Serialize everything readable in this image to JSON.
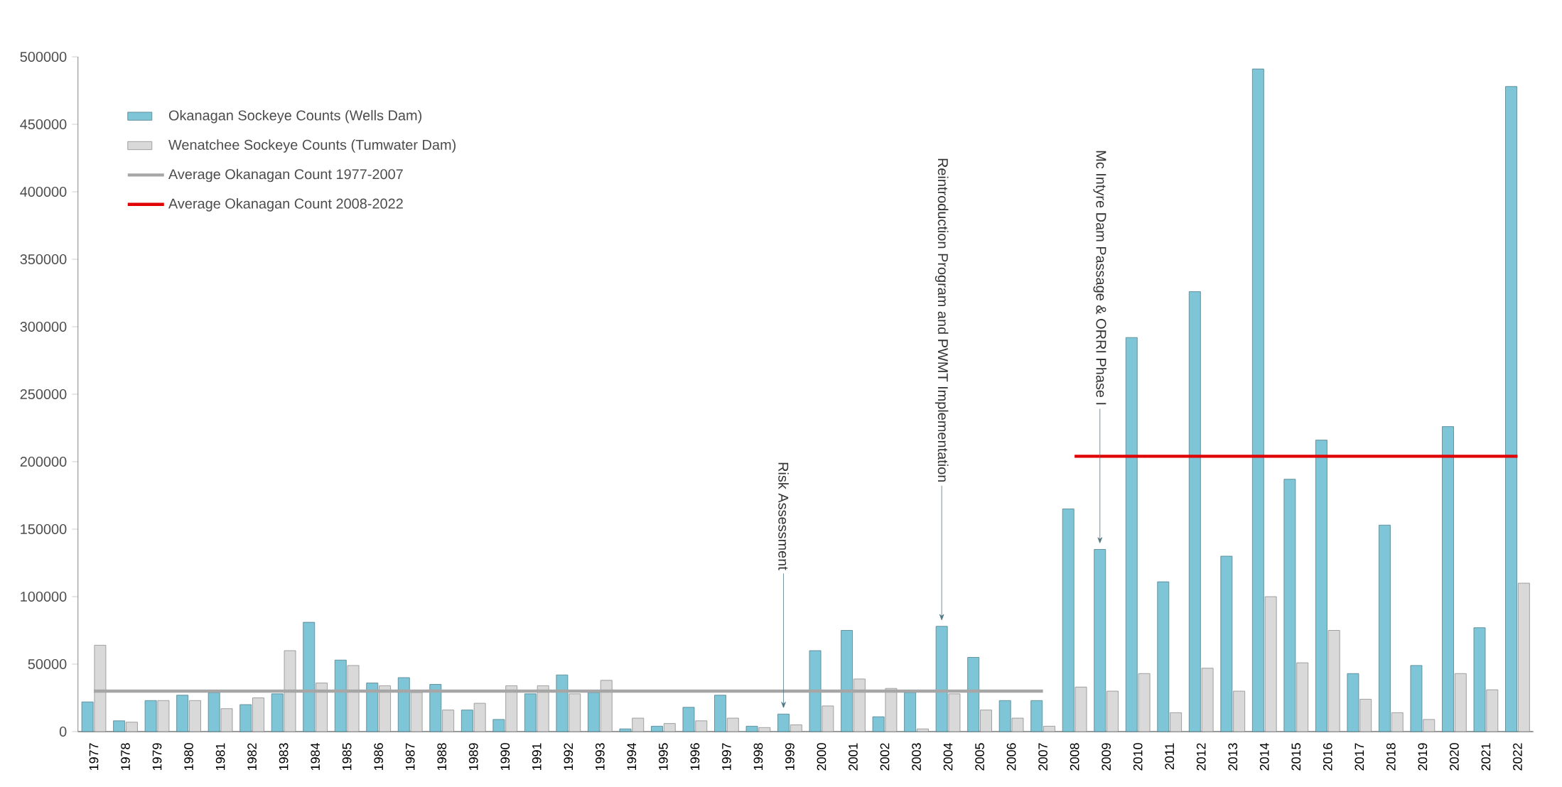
{
  "chart_data": {
    "type": "bar",
    "categories": [
      "1977",
      "1978",
      "1979",
      "1980",
      "1981",
      "1982",
      "1983",
      "1984",
      "1985",
      "1986",
      "1987",
      "1988",
      "1989",
      "1990",
      "1991",
      "1992",
      "1993",
      "1994",
      "1995",
      "1996",
      "1997",
      "1998",
      "1999",
      "2000",
      "2001",
      "2002",
      "2003",
      "2004",
      "2005",
      "2006",
      "2007",
      "2008",
      "2009",
      "2010",
      "2011",
      "2012",
      "2013",
      "2014",
      "2015",
      "2016",
      "2017",
      "2018",
      "2019",
      "2020",
      "2021",
      "2022"
    ],
    "series": [
      {
        "name": "Okanagan Sockeye Counts (Wells Dam)",
        "color": "#7ec5d8",
        "values": [
          22000,
          8000,
          23000,
          27000,
          29000,
          20000,
          28000,
          81000,
          53000,
          36000,
          40000,
          35000,
          16000,
          9000,
          28000,
          42000,
          29000,
          2000,
          4000,
          18000,
          27000,
          4000,
          13000,
          60000,
          75000,
          11000,
          29000,
          78000,
          55000,
          23000,
          23000,
          165000,
          135000,
          292000,
          111000,
          326000,
          130000,
          491000,
          187000,
          216000,
          43000,
          153000,
          49000,
          226000,
          77000,
          478000
        ]
      },
      {
        "name": "Wenatchee Sockeye Counts (Tumwater Dam)",
        "color": "#d9d9d9",
        "values": [
          64000,
          7000,
          23000,
          23000,
          17000,
          25000,
          60000,
          36000,
          49000,
          34000,
          29000,
          16000,
          21000,
          34000,
          34000,
          28000,
          38000,
          10000,
          6000,
          8000,
          10000,
          3000,
          5000,
          19000,
          39000,
          32000,
          2000,
          28000,
          16000,
          10000,
          4000,
          33000,
          30000,
          43000,
          14000,
          47000,
          30000,
          100000,
          51000,
          75000,
          24000,
          14000,
          9000,
          43000,
          31000,
          110000
        ]
      },
      {
        "name": "Average Okanagan Count 1977-2007",
        "type": "line",
        "color": "#a6a6a6",
        "values": [
          30000,
          30000,
          30000,
          30000,
          30000,
          30000,
          30000,
          30000,
          30000,
          30000,
          30000,
          30000,
          30000,
          30000,
          30000,
          30000,
          30000,
          30000,
          30000,
          30000,
          30000,
          30000,
          30000,
          30000,
          30000,
          30000,
          30000,
          30000,
          30000,
          30000,
          30000,
          null,
          null,
          null,
          null,
          null,
          null,
          null,
          null,
          null,
          null,
          null,
          null,
          null,
          null,
          null
        ]
      },
      {
        "name": "Average Okanagan Count 2008-2022",
        "type": "line",
        "color": "#e00000",
        "values": [
          null,
          null,
          null,
          null,
          null,
          null,
          null,
          null,
          null,
          null,
          null,
          null,
          null,
          null,
          null,
          null,
          null,
          null,
          null,
          null,
          null,
          null,
          null,
          null,
          null,
          null,
          null,
          null,
          null,
          null,
          null,
          204000,
          204000,
          204000,
          204000,
          204000,
          204000,
          204000,
          204000,
          204000,
          204000,
          204000,
          204000,
          204000,
          204000,
          204000
        ]
      }
    ],
    "ylim": [
      0,
      500000
    ],
    "yticks": [
      0,
      50000,
      100000,
      150000,
      200000,
      250000,
      300000,
      350000,
      400000,
      450000,
      500000
    ],
    "legend": "top left",
    "grid": false,
    "annotations": [
      "Risk Assessment",
      "Reintroduction Program and PWMT Implementation",
      "Mc Intyre Dam Passage & ORRI Phase I"
    ]
  }
}
